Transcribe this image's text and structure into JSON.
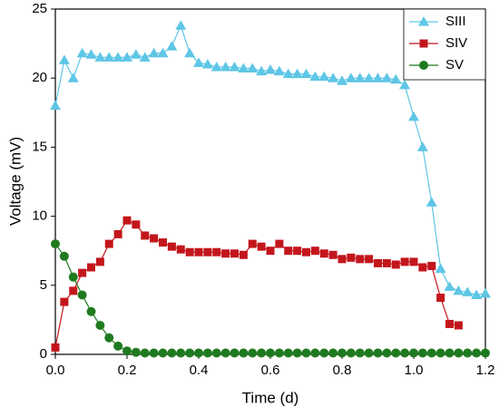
{
  "chart_data": {
    "type": "line",
    "x_label": "Time (d)",
    "y_label": "Voltage (mV)",
    "x": [
      0,
      0.025,
      0.05,
      0.075,
      0.1,
      0.125,
      0.15,
      0.175,
      0.2,
      0.225,
      0.25,
      0.275,
      0.3,
      0.325,
      0.35,
      0.375,
      0.4,
      0.425,
      0.45,
      0.475,
      0.5,
      0.525,
      0.55,
      0.575,
      0.6,
      0.625,
      0.65,
      0.675,
      0.7,
      0.725,
      0.75,
      0.775,
      0.8,
      0.825,
      0.85,
      0.875,
      0.9,
      0.925,
      0.95,
      0.975,
      1,
      1.025,
      1.05,
      1.075,
      1.1,
      1.125,
      1.15,
      1.175,
      1.2
    ],
    "series": [
      {
        "name": "SIII",
        "color": "#5ec6e6",
        "marker": "triangle",
        "values": [
          18,
          21.3,
          20,
          21.8,
          21.7,
          21.5,
          21.5,
          21.5,
          21.5,
          21.7,
          21.5,
          21.8,
          21.8,
          22.3,
          23.8,
          21.8,
          21.1,
          21,
          20.8,
          20.8,
          20.8,
          20.7,
          20.7,
          20.5,
          20.6,
          20.5,
          20.3,
          20.3,
          20.3,
          20.1,
          20.1,
          20,
          19.8,
          20,
          20,
          20,
          20,
          20,
          19.9,
          19.5,
          17.2,
          15,
          11,
          6.2,
          4.9,
          4.6,
          4.5,
          4.3,
          4.4
        ]
      },
      {
        "name": "SIV",
        "color": "#c3161c",
        "marker": "square",
        "values": [
          0.5,
          3.8,
          4.6,
          5.9,
          6.3,
          6.7,
          8,
          8.7,
          9.7,
          9.4,
          8.6,
          8.4,
          8.1,
          7.8,
          7.6,
          7.4,
          7.4,
          7.4,
          7.4,
          7.3,
          7.3,
          7.2,
          8,
          7.8,
          7.5,
          8,
          7.5,
          7.5,
          7.4,
          7.5,
          7.3,
          7.2,
          6.9,
          7,
          6.9,
          6.9,
          6.6,
          6.6,
          6.5,
          6.7,
          6.7,
          6.3,
          6.4,
          4.1,
          2.2,
          2.1,
          null,
          null,
          null
        ]
      },
      {
        "name": "SV",
        "color": "#1f7a1f",
        "marker": "circle",
        "values": [
          8,
          7.1,
          5.6,
          4.3,
          3.1,
          2.1,
          1.2,
          0.6,
          0.25,
          0.15,
          0.1,
          0.1,
          0.1,
          0.1,
          0.1,
          0.1,
          0.1,
          0.1,
          0.1,
          0.1,
          0.1,
          0.1,
          0.1,
          0.1,
          0.1,
          0.1,
          0.1,
          0.1,
          0.1,
          0.1,
          0.1,
          0.1,
          0.1,
          0.1,
          0.1,
          0.1,
          0.1,
          0.1,
          0.1,
          0.1,
          0.1,
          0.1,
          0.1,
          0.1,
          0.1,
          0.1,
          0.1,
          0.1,
          0.1
        ]
      }
    ],
    "xlim": [
      0,
      1.2
    ],
    "xticks": [
      {
        "value": 0,
        "label": "0.0"
      },
      0.2,
      0.4,
      0.6,
      0.8,
      {
        "value": 1,
        "label": "1.0"
      },
      1.2
    ],
    "ylim": [
      0,
      25
    ],
    "yticks": [
      0,
      5,
      10,
      15,
      20,
      25
    ],
    "legend": "upper right",
    "grid": false
  }
}
